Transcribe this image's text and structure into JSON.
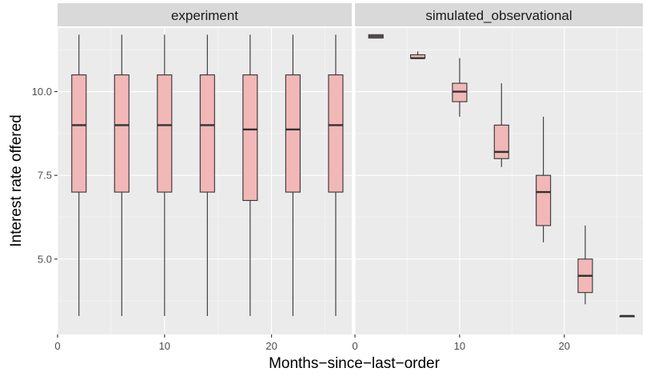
{
  "chart_data": {
    "type": "boxplot",
    "xlabel": "Months−since−last−order",
    "ylabel": "Interest rate offered",
    "x_ticks": [
      0,
      10,
      20
    ],
    "x_tick_labels": [
      "0",
      "10",
      "20"
    ],
    "xlim": [
      0,
      27.5
    ],
    "y_ticks": [
      5.0,
      7.5,
      10.0
    ],
    "y_tick_labels": [
      "5.0",
      "7.5",
      "10.0"
    ],
    "ylim": [
      2.75,
      11.9
    ],
    "grid": true,
    "colors": {
      "panel_bg": "#ebebeb",
      "grid_major": "#ffffff",
      "strip_bg": "#d9d9d9",
      "box_fill": "#f2b7b7",
      "box_stroke": "#333333",
      "text_dark": "#1a1a1a",
      "tick_text": "#4d4d4d"
    },
    "panels": [
      {
        "name": "experiment",
        "boxes": [
          {
            "x": 2,
            "min": 3.3,
            "q1": 7.0,
            "median": 9.0,
            "q3": 10.5,
            "max": 11.7
          },
          {
            "x": 6,
            "min": 3.3,
            "q1": 7.0,
            "median": 9.0,
            "q3": 10.5,
            "max": 11.7
          },
          {
            "x": 10,
            "min": 3.3,
            "q1": 7.0,
            "median": 9.0,
            "q3": 10.5,
            "max": 11.7
          },
          {
            "x": 14,
            "min": 3.3,
            "q1": 7.0,
            "median": 9.0,
            "q3": 10.5,
            "max": 11.7
          },
          {
            "x": 18,
            "min": 3.3,
            "q1": 6.75,
            "median": 8.87,
            "q3": 10.5,
            "max": 11.7
          },
          {
            "x": 22,
            "min": 3.3,
            "q1": 7.0,
            "median": 8.87,
            "q3": 10.5,
            "max": 11.7
          },
          {
            "x": 26,
            "min": 3.3,
            "q1": 7.0,
            "median": 9.0,
            "q3": 10.5,
            "max": 11.7
          }
        ]
      },
      {
        "name": "simulated_observational",
        "boxes": [
          {
            "x": 2,
            "min": 11.6,
            "q1": 11.6,
            "median": 11.65,
            "q3": 11.7,
            "max": 11.7
          },
          {
            "x": 6,
            "min": 11.0,
            "q1": 11.0,
            "median": 11.0,
            "q3": 11.1,
            "max": 11.2
          },
          {
            "x": 10,
            "min": 9.25,
            "q1": 9.7,
            "median": 10.0,
            "q3": 10.25,
            "max": 11.0
          },
          {
            "x": 14,
            "min": 7.75,
            "q1": 8.0,
            "median": 8.2,
            "q3": 9.0,
            "max": 10.25
          },
          {
            "x": 18,
            "min": 5.5,
            "q1": 6.0,
            "median": 7.0,
            "q3": 7.5,
            "max": 9.25
          },
          {
            "x": 22,
            "min": 3.65,
            "q1": 4.0,
            "median": 4.5,
            "q3": 5.0,
            "max": 6.0
          },
          {
            "x": 26,
            "min": 3.3,
            "q1": 3.3,
            "median": 3.3,
            "q3": 3.3,
            "max": 3.3
          }
        ]
      }
    ]
  }
}
